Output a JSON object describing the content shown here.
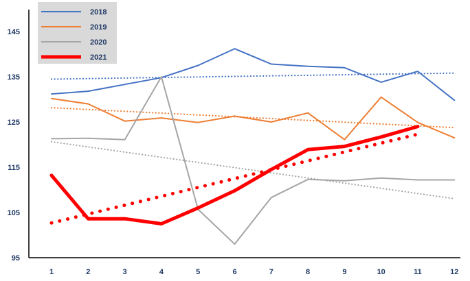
{
  "chart_data": {
    "type": "line",
    "x": [
      1,
      2,
      3,
      4,
      5,
      6,
      7,
      8,
      9,
      10,
      11,
      12
    ],
    "ylim": [
      95,
      150
    ],
    "y_ticks": [
      95,
      105,
      115,
      125,
      135,
      145
    ],
    "grid": false,
    "legend_placement": "top-left",
    "series": [
      {
        "name": "2018",
        "color": "#4472c4",
        "values": [
          131.2,
          131.8,
          133.3,
          134.8,
          137.5,
          141.2,
          137.8,
          137.3,
          137.0,
          133.8,
          136.2,
          129.8
        ],
        "trendline": true
      },
      {
        "name": "2019",
        "color": "#ed7d31",
        "values": [
          130.2,
          129.0,
          125.2,
          125.9,
          124.9,
          126.3,
          125.0,
          127.0,
          121.1,
          130.5,
          124.9,
          121.5
        ],
        "trendline": true
      },
      {
        "name": "2020",
        "color": "#a5a5a5",
        "values": [
          121.3,
          121.4,
          121.1,
          135.0,
          105.7,
          98.0,
          108.3,
          112.3,
          112.0,
          112.6,
          112.2,
          112.2
        ],
        "trendline": true
      },
      {
        "name": "2021",
        "color": "#ff0000",
        "values": [
          113.2,
          103.6,
          103.6,
          102.5,
          106.0,
          109.8,
          114.5,
          118.9,
          119.6,
          121.7,
          124.0,
          null
        ],
        "trendline": true
      }
    ]
  }
}
